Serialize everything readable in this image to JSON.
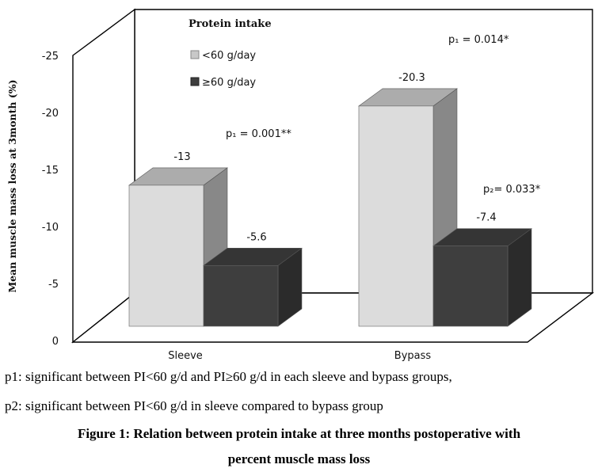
{
  "chart_data": {
    "type": "bar",
    "ylabel": "Mean muscle mass loss at 3month (%)",
    "categories": [
      "Sleeve",
      "Bypass"
    ],
    "yticks": [
      "0",
      "-5",
      "-10",
      "-15",
      "-20",
      "-25"
    ],
    "ylim": [
      0,
      -25
    ],
    "legend_title": "Protein intake",
    "legend_position": "top-left inside plot",
    "series": [
      {
        "name": "<60 g/day",
        "values": [
          -13,
          -20.3
        ],
        "labels": [
          "-13",
          "-20.3"
        ],
        "color": "#dcdcdc"
      },
      {
        "name": "≥60 g/day",
        "values": [
          -5.6,
          -7.4
        ],
        "labels": [
          "-5.6",
          "-7.4"
        ],
        "color": "#3e3e3e"
      }
    ],
    "annotations": [
      "p₁ = 0.001**",
      "p₁ = 0.014*",
      "p₂= 0.033*"
    ],
    "grid": false
  },
  "notes": {
    "p1": "p1: significant between PI<60 g/d and PI≥60 g/d in each sleeve and bypass groups,",
    "p2": "p2: significant between PI<60 g/d in sleeve compared to bypass group"
  },
  "figure": {
    "caption_line1": "Figure 1: Relation between protein intake at three months postoperative with",
    "caption_line2": "percent muscle mass loss"
  }
}
